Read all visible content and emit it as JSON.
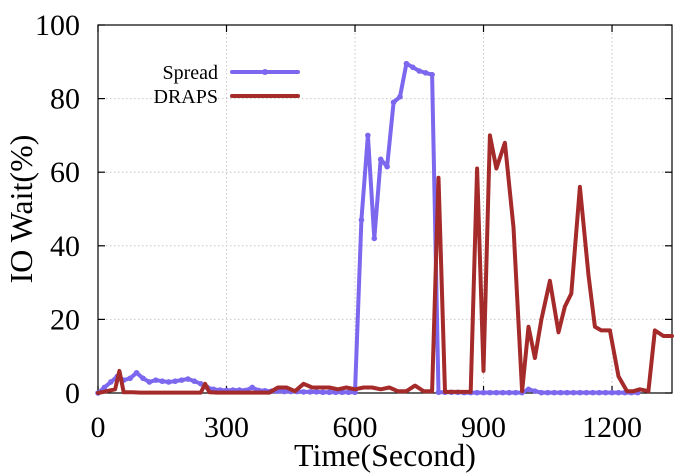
{
  "chart_data": {
    "type": "line",
    "title": "",
    "xlabel": "Time(Second)",
    "ylabel": "IO Wait(%)",
    "xlim": [
      0,
      1340
    ],
    "ylim": [
      0,
      100
    ],
    "xticks": [
      0,
      300,
      600,
      900,
      1200
    ],
    "yticks": [
      0,
      20,
      40,
      60,
      80,
      100
    ],
    "grid": true,
    "legend_position": "top-left",
    "series": [
      {
        "name": "Spread",
        "color": "#7b68ee",
        "marker": "circle",
        "x": [
          0,
          15,
          30,
          45,
          60,
          75,
          90,
          105,
          120,
          135,
          150,
          165,
          180,
          195,
          210,
          225,
          240,
          255,
          270,
          285,
          300,
          315,
          330,
          345,
          360,
          375,
          390,
          405,
          420,
          435,
          450,
          465,
          480,
          495,
          510,
          525,
          540,
          555,
          570,
          585,
          600,
          615,
          630,
          645,
          660,
          675,
          690,
          705,
          720,
          735,
          750,
          765,
          780,
          795,
          810,
          825,
          840,
          855,
          870,
          885,
          900,
          915,
          930,
          945,
          960,
          975,
          990,
          1005,
          1020,
          1035,
          1050,
          1065,
          1080,
          1095,
          1110,
          1125,
          1140,
          1155,
          1170,
          1185,
          1200,
          1215,
          1230,
          1245,
          1260
        ],
        "y": [
          0,
          1.5,
          3,
          4.5,
          3.5,
          4,
          5.5,
          4,
          3,
          3.5,
          3.2,
          3,
          3.2,
          3.5,
          3.8,
          3.2,
          2.5,
          1.5,
          1,
          0.8,
          0.7,
          0.8,
          0.8,
          0.7,
          1.5,
          0.7,
          0.6,
          0.5,
          0.5,
          0.4,
          0.4,
          0.4,
          0.3,
          0.3,
          0.3,
          0.2,
          0.2,
          0.2,
          0.2,
          0.2,
          0.2,
          47,
          70,
          42,
          63.5,
          61.5,
          79,
          80.5,
          89.5,
          88.5,
          87.5,
          87,
          86.5,
          0.2,
          0.2,
          0.2,
          0.2,
          0.1,
          0.1,
          0.1,
          0.1,
          0.1,
          0.1,
          0.1,
          0.1,
          0.1,
          0.1,
          1,
          0.5,
          0.1,
          0.1,
          0.1,
          0.1,
          0.1,
          0.1,
          0.1,
          0.1,
          0.1,
          0.1,
          0.1,
          0.1,
          0.1,
          0.1,
          0.1,
          0.1
        ]
      },
      {
        "name": "DRAPS",
        "color": "#a52a2a",
        "marker": "none",
        "x": [
          0,
          20,
          40,
          50,
          60,
          80,
          100,
          120,
          140,
          160,
          180,
          200,
          220,
          240,
          250,
          260,
          280,
          300,
          320,
          340,
          360,
          380,
          400,
          420,
          440,
          460,
          480,
          500,
          520,
          540,
          560,
          580,
          600,
          620,
          640,
          660,
          680,
          700,
          720,
          740,
          760,
          780,
          795,
          810,
          825,
          840,
          855,
          870,
          885,
          900,
          915,
          930,
          950,
          970,
          990,
          1005,
          1020,
          1035,
          1055,
          1075,
          1090,
          1105,
          1125,
          1145,
          1160,
          1175,
          1195,
          1215,
          1235,
          1250,
          1265,
          1285,
          1300,
          1320,
          1340
        ],
        "y": [
          0,
          0.5,
          1,
          6,
          0.2,
          0.2,
          0.1,
          0.1,
          0.1,
          0.1,
          0.1,
          0.1,
          0.1,
          0.1,
          2.5,
          0.2,
          0.1,
          0.1,
          0.1,
          0.1,
          0.1,
          0.1,
          0.1,
          1.5,
          1.5,
          0.5,
          2.5,
          1.5,
          1.5,
          1.5,
          1,
          1.5,
          1,
          1.5,
          1.5,
          1,
          1.5,
          0.5,
          0.5,
          2,
          0.5,
          0.5,
          58.5,
          0.3,
          0.3,
          0.3,
          0.3,
          0.3,
          61,
          6,
          70,
          61,
          68,
          45,
          0.5,
          18,
          9.5,
          20,
          30.5,
          16.5,
          23.5,
          27,
          56,
          32,
          18,
          17,
          17,
          4.5,
          0.5,
          0.5,
          1,
          0.5,
          17,
          15.5,
          15.5
        ]
      }
    ]
  }
}
